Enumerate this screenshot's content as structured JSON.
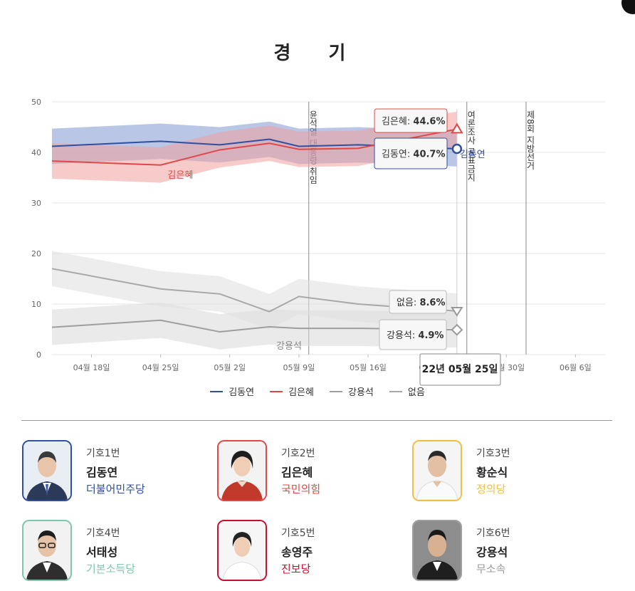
{
  "title": "경 기",
  "chart_data": {
    "type": "line",
    "title": "경 기",
    "ylim": [
      0,
      50
    ],
    "y_ticks": [
      "0",
      "10",
      "20",
      "30",
      "40",
      "50"
    ],
    "x_ticks": [
      "04월 18일",
      "04월 25일",
      "05월 2일",
      "05월 9일",
      "05월 16일",
      "05월 23일",
      "05월 30일",
      "06월 6일"
    ],
    "x": [
      "04-14",
      "04-25",
      "05-01",
      "05-06",
      "05-09",
      "05-15",
      "05-25"
    ],
    "series": [
      {
        "name": "김동연",
        "color": "#2f4f9f",
        "band_color": "#7f98cf",
        "values": [
          41.2,
          42.2,
          41.5,
          42.6,
          41.2,
          41.5,
          40.7
        ]
      },
      {
        "name": "김은혜",
        "color": "#e04848",
        "band_color": "#f2a0a0",
        "values": [
          38.3,
          37.5,
          40.5,
          41.8,
          40.6,
          40.8,
          44.6
        ]
      },
      {
        "name": "강용석",
        "color": "#9e9e9e",
        "band_color": "#d8d8d8",
        "values": [
          5.4,
          6.8,
          4.5,
          5.5,
          5.2,
          5.2,
          4.9
        ]
      },
      {
        "name": "없음",
        "color": "#a8a8a8",
        "band_color": "#dedede",
        "values": [
          17.0,
          13.0,
          12.0,
          8.5,
          11.5,
          10.0,
          8.6
        ]
      }
    ],
    "events": [
      {
        "date": "05-10",
        "label": "윤석열 대통령 취임"
      },
      {
        "date": "05-26",
        "label": "여론조사 공표금지"
      },
      {
        "date": "06-01",
        "label": "제8회 지방선거"
      }
    ],
    "inline_labels": [
      "김은혜",
      "강용석",
      "김동연"
    ],
    "tooltip": {
      "date": "22년 05월 25일",
      "top": [
        {
          "name": "김은혜",
          "value": "44.6%"
        },
        {
          "name": "김동연",
          "value": "40.7%"
        }
      ],
      "bottom": [
        {
          "name": "없음",
          "value": "8.6%"
        },
        {
          "name": "강용석",
          "value": "4.9%"
        }
      ]
    },
    "legend": [
      "김동연",
      "김은혜",
      "강용석",
      "없음"
    ],
    "legend_position": "bottom",
    "grid": true
  },
  "legend": [
    {
      "label": "김동연",
      "color": "#2f4f9f"
    },
    {
      "label": "김은혜",
      "color": "#e04848"
    },
    {
      "label": "강용석",
      "color": "#9e9e9e"
    },
    {
      "label": "없음",
      "color": "#a8a8a8"
    }
  ],
  "candidates": [
    {
      "number": "기호1번",
      "name": "김동연",
      "party": "더불어민주당",
      "color": "#2f4f9f",
      "avatar": "man-suit-blue-tie"
    },
    {
      "number": "기호2번",
      "name": "김은혜",
      "party": "국민의힘",
      "color": "#e04848",
      "avatar": "woman-red-top"
    },
    {
      "number": "기호3번",
      "name": "황순식",
      "party": "정의당",
      "color": "#f0c040",
      "avatar": "man-white-shirt"
    },
    {
      "number": "기호4번",
      "name": "서태성",
      "party": "기본소득당",
      "color": "#7dc7ad",
      "avatar": "man-glasses-suit"
    },
    {
      "number": "기호5번",
      "name": "송영주",
      "party": "진보당",
      "color": "#c8102e",
      "avatar": "woman-white-top"
    },
    {
      "number": "기호6번",
      "name": "강용석",
      "party": "무소속",
      "color": "#9e9e9e",
      "avatar": "man-dark-suit"
    }
  ]
}
